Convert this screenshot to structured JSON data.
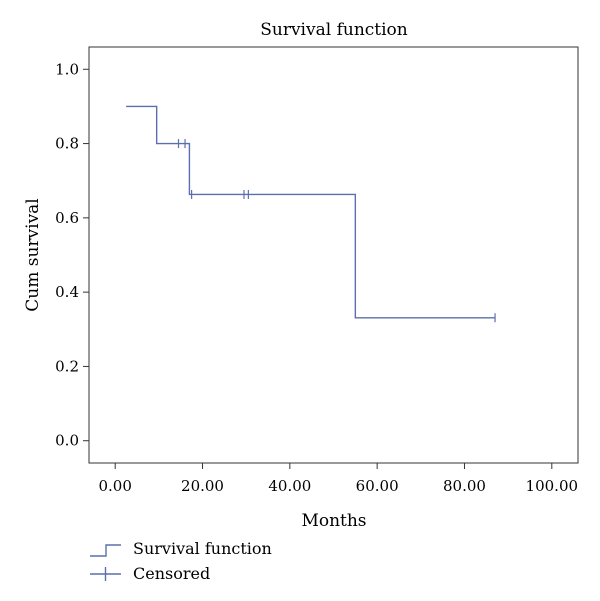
{
  "chart_data": {
    "type": "line",
    "title": "Survival function",
    "xlabel": "Months",
    "ylabel": "Cum survival",
    "xlim": [
      -6,
      106
    ],
    "ylim": [
      -0.06,
      1.06
    ],
    "x_ticks": [
      0,
      20,
      40,
      60,
      80,
      100
    ],
    "x_tick_labels": [
      "0.00",
      "20.00",
      "40.00",
      "60.00",
      "80.00",
      "100.00"
    ],
    "y_ticks": [
      0.0,
      0.2,
      0.4,
      0.6,
      0.8,
      1.0
    ],
    "y_tick_labels": [
      "0.0",
      "0.2",
      "0.4",
      "0.6",
      "0.8",
      "1.0"
    ],
    "grid": false,
    "legend_position": "bottom-left",
    "series": [
      {
        "name": "Survival function",
        "kind": "step",
        "color": "#5b6fae",
        "points": [
          [
            2.5,
            0.9
          ],
          [
            9.5,
            0.8
          ],
          [
            17.0,
            0.663
          ],
          [
            55.0,
            0.331
          ],
          [
            87.0,
            0.331
          ]
        ]
      },
      {
        "name": "Censored",
        "kind": "marker",
        "color": "#5b6fae",
        "points": [
          [
            14.5,
            0.8
          ],
          [
            16.0,
            0.8
          ],
          [
            17.5,
            0.663
          ],
          [
            29.5,
            0.663
          ],
          [
            30.5,
            0.663
          ],
          [
            87.0,
            0.331
          ]
        ]
      }
    ]
  }
}
